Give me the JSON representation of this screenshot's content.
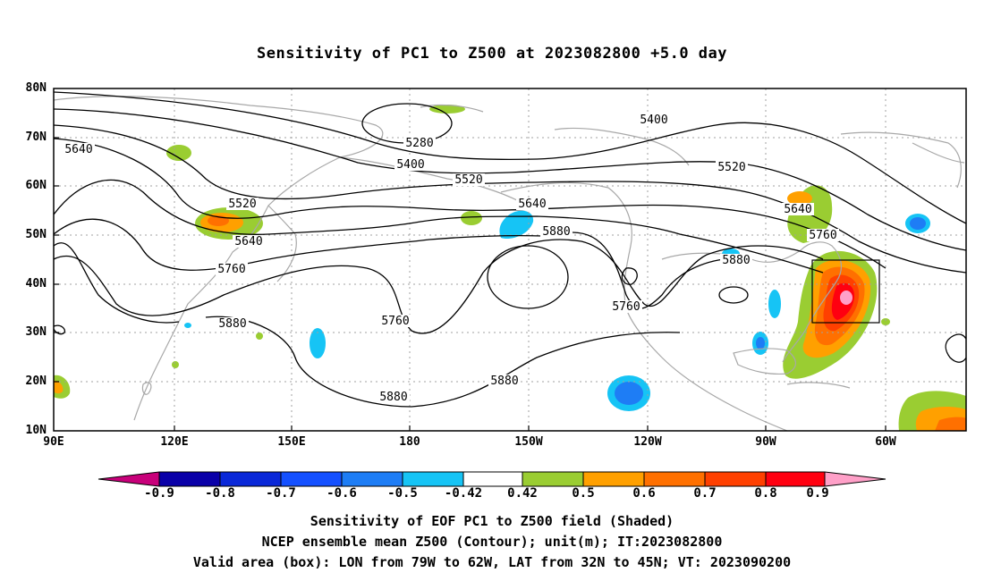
{
  "title": "Sensitivity of PC1 to Z500 at 2023082800 +5.0 day",
  "lat_labels": [
    "80N",
    "70N",
    "60N",
    "50N",
    "40N",
    "30N",
    "20N",
    "10N"
  ],
  "lon_labels": [
    "90E",
    "120E",
    "150E",
    "180",
    "150W",
    "120W",
    "90W",
    "60W"
  ],
  "contour_labels": {
    "c5280": "5280",
    "c5400a": "5400",
    "c5400b": "5400",
    "c5520a": "5520",
    "c5520b": "5520",
    "c5520c": "5520",
    "c5640a": "5640",
    "c5640b": "5640",
    "c5640c": "5640",
    "c5640d": "5640",
    "c5760a": "5760",
    "c5760b": "5760",
    "c5760c": "5760",
    "c5760d": "5760",
    "c5880a": "5880",
    "c5880b": "5880",
    "c5880c": "5880",
    "c5880d": "5880",
    "c5880e": "5880"
  },
  "colorbar": {
    "labels": [
      "-0.9",
      "-0.8",
      "-0.7",
      "-0.6",
      "-0.5",
      "-0.42",
      "0.42",
      "0.5",
      "0.6",
      "0.7",
      "0.8",
      "0.9"
    ],
    "colors": [
      "#c8007a",
      "#0a00a8",
      "#0a28d8",
      "#1450ff",
      "#1e7df5",
      "#16c4f5",
      "#ffffff",
      "#9acd32",
      "#ffa000",
      "#ff7000",
      "#ff4000",
      "#ff0010",
      "#ffa0c8"
    ]
  },
  "valid_box": {
    "lon_from": "79W",
    "lon_to": "62W",
    "lat_from": "32N",
    "lat_to": "45N"
  },
  "captions": {
    "line1": "Sensitivity of EOF PC1 to Z500 field (Shaded)",
    "line2": "NCEP ensemble mean Z500 (Contour); unit(m); IT:2023082800",
    "line3": "Valid area (box): LON from 79W to 62W, LAT from 32N to 45N; VT: 2023090200"
  }
}
